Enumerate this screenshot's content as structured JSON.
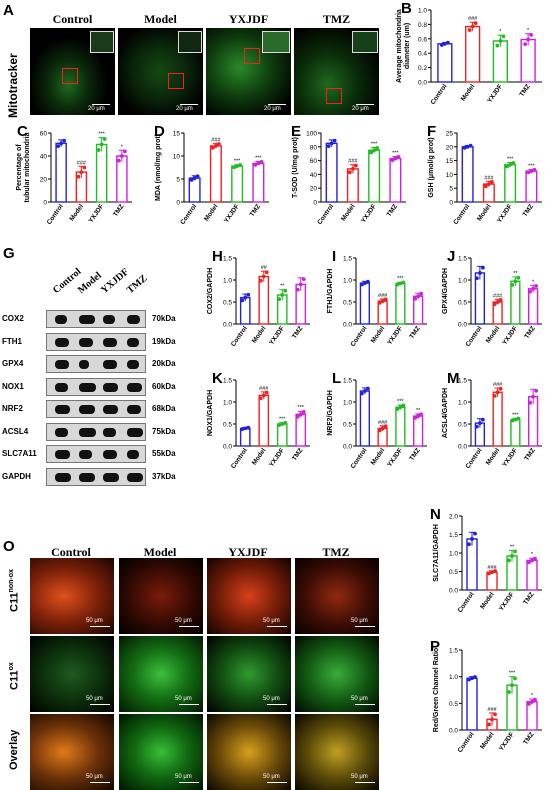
{
  "panel_letters": [
    "A",
    "B",
    "C",
    "D",
    "E",
    "F",
    "G",
    "H",
    "I",
    "J",
    "K",
    "L",
    "M",
    "N",
    "O",
    "P"
  ],
  "groups": [
    "Control",
    "Model",
    "YXJDF",
    "TMZ"
  ],
  "colors": {
    "Control": "#2222dd",
    "Model": "#ee2222",
    "YXJDF": "#22bb22",
    "TMZ": "#cc22dd"
  },
  "panel_a": {
    "row_label": "Mitotracker",
    "scale_text": "20 μm"
  },
  "panel_g": {
    "proteins": [
      "COX2",
      "FTH1",
      "GPX4",
      "NOX1",
      "NRF2",
      "ACSL4",
      "SLC7A11",
      "GAPDH"
    ],
    "kda": [
      "70kDa",
      "19kDa",
      "20kDa",
      "60kDa",
      "68kDa",
      "75kDa",
      "55kDa",
      "37kDa"
    ]
  },
  "panel_o": {
    "rows": [
      "C11non-ox",
      "C11ox",
      "Overlay"
    ],
    "row_sup": [
      "non-ox",
      "ox",
      ""
    ],
    "row_base": [
      "C11",
      "C11",
      ""
    ],
    "row_plain": [
      "",
      "",
      "Overlay"
    ],
    "scale_text": "50 μm"
  },
  "chart_data": [
    {
      "id": "B",
      "type": "bar",
      "categories": [
        "Control",
        "Model",
        "YXJDF",
        "TMZ"
      ],
      "values": [
        0.53,
        0.77,
        0.57,
        0.59
      ],
      "errors": [
        0.02,
        0.06,
        0.08,
        0.08
      ],
      "sig": [
        "",
        "###",
        "*",
        "*"
      ],
      "ylabel": "Average mitochondria diameter (um)",
      "ylim": [
        0,
        1.0
      ],
      "yticks": [
        "0.0",
        "0.2",
        "0.4",
        "0.6",
        "0.8",
        "1.0"
      ]
    },
    {
      "id": "C",
      "type": "bar",
      "categories": [
        "Control",
        "Model",
        "YXJDF",
        "TMZ"
      ],
      "values": [
        51,
        26,
        50,
        40
      ],
      "errors": [
        3,
        5,
        6,
        5
      ],
      "sig": [
        "",
        "###",
        "***",
        "*"
      ],
      "ylabel": "Percentage of tubular mitochondria",
      "ylim": [
        0,
        60
      ],
      "yticks": [
        "0",
        "20",
        "40",
        "60"
      ]
    },
    {
      "id": "D",
      "type": "bar",
      "categories": [
        "Control",
        "Model",
        "YXJDF",
        "TMZ"
      ],
      "values": [
        5.2,
        12.2,
        7.8,
        8.4
      ],
      "errors": [
        0.5,
        0.5,
        0.3,
        0.4
      ],
      "sig": [
        "",
        "###",
        "***",
        "***"
      ],
      "ylabel": "MDA (nmol/mg prot)",
      "ylim": [
        0,
        15
      ],
      "yticks": [
        "0",
        "5",
        "10",
        "15"
      ]
    },
    {
      "id": "E",
      "type": "bar",
      "categories": [
        "Control",
        "Model",
        "YXJDF",
        "TMZ"
      ],
      "values": [
        85,
        48,
        75,
        63
      ],
      "errors": [
        5,
        6,
        4,
        3
      ],
      "sig": [
        "",
        "###",
        "***",
        "***"
      ],
      "ylabel": "T-SOD (U/mg prot)",
      "ylim": [
        0,
        100
      ],
      "yticks": [
        "0",
        "20",
        "40",
        "60",
        "80",
        "100"
      ]
    },
    {
      "id": "F",
      "type": "bar",
      "categories": [
        "Control",
        "Model",
        "YXJDF",
        "TMZ"
      ],
      "values": [
        20,
        6.5,
        13.5,
        11.2
      ],
      "errors": [
        0.5,
        1,
        0.8,
        0.6
      ],
      "sig": [
        "",
        "###",
        "***",
        "***"
      ],
      "ylabel": "GSH (μmol/g prot)",
      "ylim": [
        0,
        25
      ],
      "yticks": [
        "0",
        "5",
        "10",
        "15",
        "20",
        "25"
      ]
    },
    {
      "id": "H",
      "type": "bar",
      "categories": [
        "Control",
        "Model",
        "YXJDF",
        "TMZ"
      ],
      "values": [
        0.6,
        1.08,
        0.66,
        0.9
      ],
      "errors": [
        0.08,
        0.12,
        0.12,
        0.15
      ],
      "sig": [
        "",
        "##",
        "**",
        ""
      ],
      "ylabel": "COX2/GAPDH",
      "ylim": [
        0,
        1.5
      ],
      "yticks": [
        "0.0",
        "0.5",
        "1.0",
        "1.5"
      ]
    },
    {
      "id": "I",
      "type": "bar",
      "categories": [
        "Control",
        "Model",
        "YXJDF",
        "TMZ"
      ],
      "values": [
        0.93,
        0.52,
        0.92,
        0.63
      ],
      "errors": [
        0.04,
        0.05,
        0.03,
        0.07
      ],
      "sig": [
        "",
        "###",
        "***",
        ""
      ],
      "ylabel": "FTH1/GAPDH",
      "ylim": [
        0,
        1.5
      ],
      "yticks": [
        "0.0",
        "0.5",
        "1.0",
        "1.5"
      ]
    },
    {
      "id": "J",
      "type": "bar",
      "categories": [
        "Control",
        "Model",
        "YXJDF",
        "TMZ"
      ],
      "values": [
        1.16,
        0.5,
        0.97,
        0.8
      ],
      "errors": [
        0.15,
        0.06,
        0.1,
        0.08
      ],
      "sig": [
        "",
        "###",
        "**",
        "*"
      ],
      "ylabel": "GPX4/GAPDH",
      "ylim": [
        0,
        1.5
      ],
      "yticks": [
        "0.0",
        "0.5",
        "1.0",
        "1.5"
      ]
    },
    {
      "id": "K",
      "type": "bar",
      "categories": [
        "Control",
        "Model",
        "YXJDF",
        "TMZ"
      ],
      "values": [
        0.4,
        1.15,
        0.5,
        0.72
      ],
      "errors": [
        0.02,
        0.08,
        0.03,
        0.07
      ],
      "sig": [
        "",
        "###",
        "***",
        "***"
      ],
      "ylabel": "NOX1/GAPDH",
      "ylim": [
        0,
        1.5
      ],
      "yticks": [
        "0.0",
        "0.5",
        "1.0",
        "1.5"
      ]
    },
    {
      "id": "L",
      "type": "bar",
      "categories": [
        "Control",
        "Model",
        "YXJDF",
        "TMZ"
      ],
      "values": [
        1.25,
        0.4,
        0.88,
        0.68
      ],
      "errors": [
        0.07,
        0.06,
        0.05,
        0.05
      ],
      "sig": [
        "",
        "###",
        "***",
        "**"
      ],
      "ylabel": "NRF2/GAPDH",
      "ylim": [
        0,
        1.5
      ],
      "yticks": [
        "0.0",
        "0.5",
        "1.0",
        "1.5"
      ]
    },
    {
      "id": "M",
      "type": "bar",
      "categories": [
        "Control",
        "Model",
        "YXJDF",
        "TMZ"
      ],
      "values": [
        0.52,
        1.22,
        0.6,
        1.12
      ],
      "errors": [
        0.1,
        0.1,
        0.03,
        0.17
      ],
      "sig": [
        "",
        "###",
        "***",
        ""
      ],
      "ylabel": "ACSL4/GAPDH",
      "ylim": [
        0,
        1.5
      ],
      "yticks": [
        "0.0",
        "0.5",
        "1.0",
        "1.5"
      ]
    },
    {
      "id": "N",
      "type": "bar",
      "categories": [
        "Control",
        "Model",
        "YXJDF",
        "TMZ"
      ],
      "values": [
        1.38,
        0.48,
        0.92,
        0.8
      ],
      "errors": [
        0.18,
        0.04,
        0.15,
        0.06
      ],
      "sig": [
        "",
        "###",
        "**",
        "*"
      ],
      "ylabel": "SLC7A11/GAPDH",
      "ylim": [
        0,
        2.0
      ],
      "yticks": [
        "0.0",
        "0.5",
        "1.0",
        "1.5",
        "2.0"
      ]
    },
    {
      "id": "P",
      "type": "bar",
      "categories": [
        "Control",
        "Model",
        "YXJDF",
        "TMZ"
      ],
      "values": [
        0.97,
        0.2,
        0.84,
        0.53
      ],
      "errors": [
        0.03,
        0.12,
        0.16,
        0.05
      ],
      "sig": [
        "",
        "###",
        "***",
        "*"
      ],
      "ylabel": "Red/Green Channel Ratio",
      "ylim": [
        0,
        1.5
      ],
      "yticks": [
        "0.0",
        "0.5",
        "1.0",
        "1.5"
      ]
    }
  ]
}
